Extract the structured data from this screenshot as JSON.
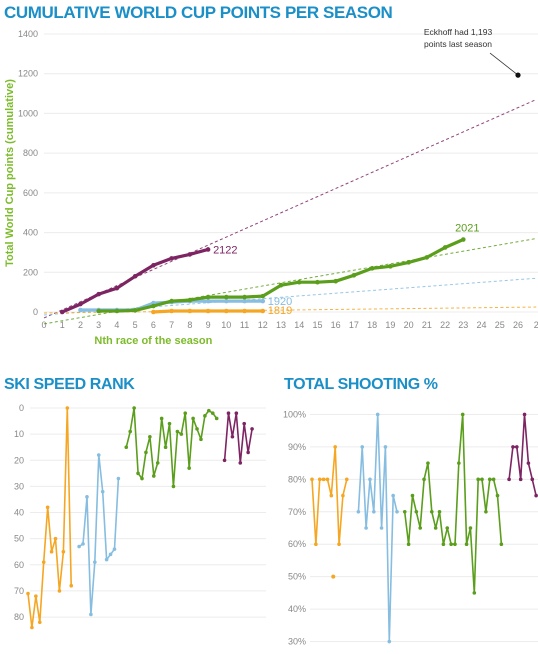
{
  "titles": {
    "main": "CUMULATIVE WORLD CUP POINTS PER SEASON",
    "ski": "SKI SPEED RANK",
    "shooting": "TOTAL SHOOTING %"
  },
  "colors": {
    "s1819": "#f5a623",
    "s1920": "#86bde0",
    "s2021": "#5a9e1c",
    "s2122": "#7d2463",
    "title": "#1b8fc7",
    "axis_label": "#7cbb2a"
  },
  "chart_data": [
    {
      "type": "line",
      "title": "CUMULATIVE WORLD CUP POINTS PER SEASON",
      "xlabel": "Nth race of the season",
      "ylabel": "Total World Cup points (cumulative)",
      "xlim": [
        0,
        26
      ],
      "ylim": [
        0,
        1400
      ],
      "x_ticks": [
        "0",
        "1",
        "2",
        "3",
        "4",
        "5",
        "6",
        "7",
        "8",
        "9",
        "10",
        "11",
        "12",
        "13",
        "14",
        "15",
        "16",
        "17",
        "18",
        "19",
        "20",
        "21",
        "22",
        "23",
        "24",
        "25",
        "26",
        "2"
      ],
      "y_ticks": [
        "0",
        "200",
        "400",
        "600",
        "800",
        "1000",
        "1200",
        "1400"
      ],
      "grid": "horizontal",
      "series": [
        {
          "name": "2122",
          "color": "#7d2463",
          "x": [
            1,
            2,
            3,
            4,
            5,
            6,
            7,
            8,
            9
          ],
          "y": [
            0,
            40,
            90,
            120,
            180,
            235,
            270,
            290,
            315
          ]
        },
        {
          "name": "2021",
          "color": "#5a9e1c",
          "x": [
            3,
            4,
            5,
            6,
            7,
            8,
            9,
            10,
            11,
            12,
            13,
            14,
            15,
            16,
            17,
            18,
            19,
            20,
            21,
            22,
            23
          ],
          "y": [
            5,
            5,
            8,
            30,
            55,
            60,
            75,
            75,
            75,
            80,
            135,
            150,
            150,
            155,
            185,
            220,
            230,
            250,
            275,
            325,
            365
          ]
        },
        {
          "name": "1920",
          "color": "#86bde0",
          "x": [
            2,
            3,
            4,
            5,
            6,
            7,
            8,
            9,
            10,
            11,
            12
          ],
          "y": [
            10,
            10,
            10,
            10,
            45,
            50,
            55,
            55,
            55,
            55,
            55
          ]
        },
        {
          "name": "1819",
          "color": "#f5a623",
          "x": [
            6,
            7,
            8,
            9,
            10,
            11,
            12
          ],
          "y": [
            0,
            5,
            5,
            5,
            5,
            5,
            5
          ]
        }
      ],
      "trendlines": [
        {
          "color": "#7d2463",
          "x": [
            0,
            27
          ],
          "y": [
            -30,
            1070
          ]
        },
        {
          "color": "#5a9e1c",
          "x": [
            0,
            27
          ],
          "y": [
            -60,
            370
          ]
        },
        {
          "color": "#86bde0",
          "x": [
            0,
            27
          ],
          "y": [
            -15,
            170
          ]
        },
        {
          "color": "#f5a623",
          "x": [
            0,
            27
          ],
          "y": [
            -5,
            25
          ]
        }
      ],
      "annotation": {
        "text_lines": [
          "Eckhoff had 1,193",
          "points last season"
        ],
        "x": 26,
        "y": 1193
      }
    },
    {
      "type": "line",
      "title": "SKI SPEED RANK",
      "ylim": [
        0,
        90
      ],
      "y_reversed": true,
      "y_ticks": [
        "0",
        "10",
        "20",
        "30",
        "40",
        "50",
        "60",
        "70",
        "80"
      ],
      "grid": "horizontal",
      "series": [
        {
          "color": "#f5a623",
          "values": [
            71,
            84,
            72,
            82,
            59,
            38,
            55,
            50,
            70,
            55,
            0,
            68
          ]
        },
        {
          "color": "#86bde0",
          "values": [
            53,
            52,
            34,
            79,
            59,
            18,
            32,
            58,
            56,
            54,
            27
          ]
        },
        {
          "color": "#5a9e1c",
          "values": [
            15,
            9,
            0,
            25,
            27,
            17,
            11,
            26,
            21,
            4,
            15,
            6,
            30,
            9,
            10,
            2,
            23,
            4,
            8,
            12,
            3,
            1,
            2,
            4
          ]
        },
        {
          "color": "#7d2463",
          "values": [
            20,
            2,
            11,
            2,
            21,
            6,
            17,
            8
          ]
        }
      ]
    },
    {
      "type": "line",
      "title": "TOTAL SHOOTING %",
      "ylim": [
        28,
        102
      ],
      "y_ticks": [
        "30%",
        "40%",
        "50%",
        "60%",
        "70%",
        "80%",
        "90%",
        "100%"
      ],
      "grid": "horizontal",
      "series": [
        {
          "color": "#f5a623",
          "segments": [
            [
              80,
              60,
              80,
              80,
              80,
              75,
              90,
              60,
              75,
              80
            ]
          ],
          "points": [
            50
          ]
        },
        {
          "color": "#86bde0",
          "segments": [
            [
              70,
              90,
              65,
              80,
              70,
              100,
              65,
              90,
              30,
              75,
              70
            ]
          ]
        },
        {
          "color": "#5a9e1c",
          "segments": [
            [
              70,
              60,
              75,
              70,
              65,
              80,
              85,
              70,
              65,
              70,
              60,
              65,
              60,
              60,
              85,
              100,
              60,
              65,
              45,
              80,
              80,
              70,
              80,
              80,
              75,
              60
            ]
          ]
        },
        {
          "color": "#7d2463",
          "segments": [
            [
              80,
              90,
              90,
              80,
              100,
              85,
              80,
              75
            ]
          ]
        }
      ]
    }
  ]
}
